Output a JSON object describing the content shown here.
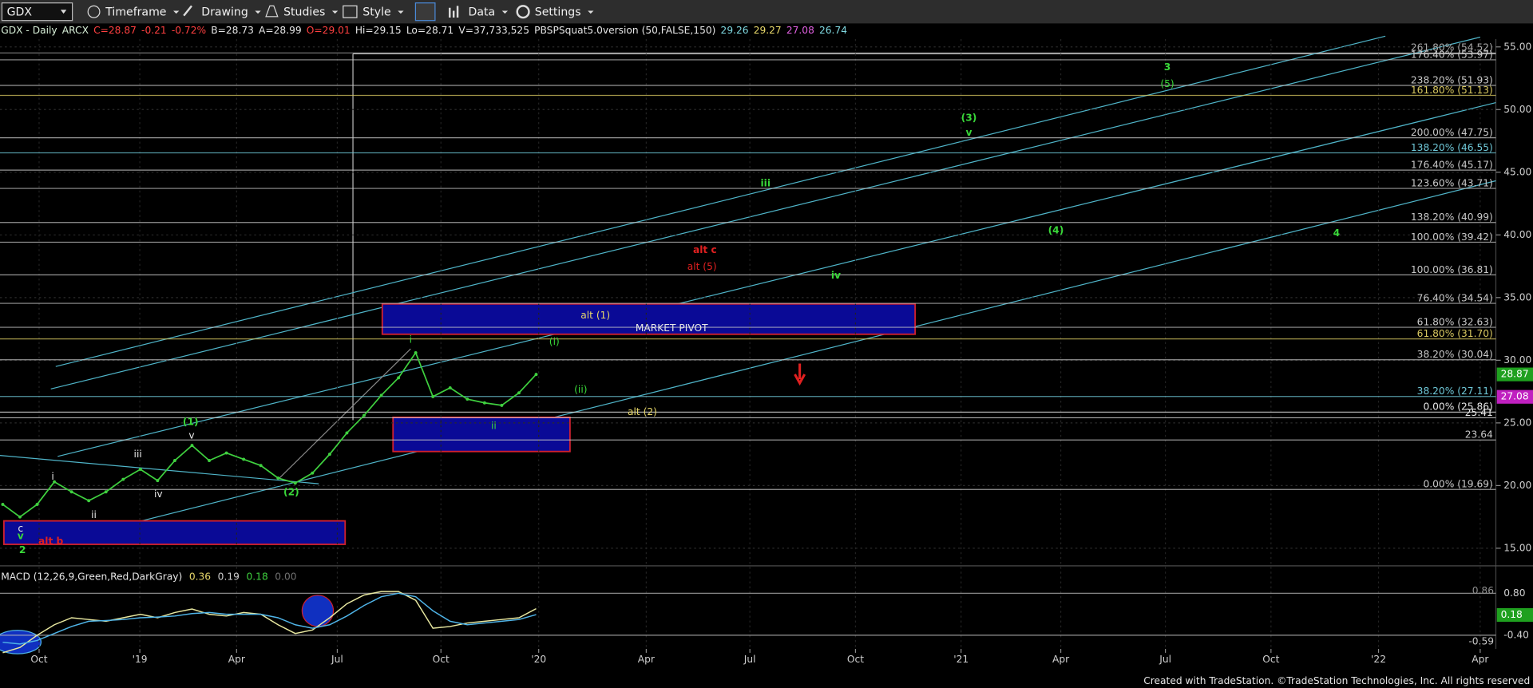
{
  "toolbar": {
    "symbol": "GDX",
    "menus": [
      "Timeframe",
      "Drawing",
      "Studies",
      "Style",
      "Data",
      "Settings"
    ]
  },
  "status_line": [
    {
      "text": "GDX - Daily",
      "color": "#d8f0d8"
    },
    {
      "text": "ARCX",
      "color": "#d8f0d8"
    },
    {
      "text": "C=28.87",
      "color": "#ff4040"
    },
    {
      "text": "-0.21",
      "color": "#ff4040"
    },
    {
      "text": "-0.72%",
      "color": "#ff4040"
    },
    {
      "text": "B=28.73",
      "color": "#e6e6e6"
    },
    {
      "text": "A=28.99",
      "color": "#e6e6e6"
    },
    {
      "text": "O=29.01",
      "color": "#ff4040"
    },
    {
      "text": "Hi=29.15",
      "color": "#e6e6e6"
    },
    {
      "text": "Lo=28.71",
      "color": "#e6e6e6"
    },
    {
      "text": "V=37,733,525",
      "color": "#e6e6e6"
    },
    {
      "text": "PBSPSquat5.0version (50,FALSE,150)",
      "color": "#e6e6e6"
    },
    {
      "text": "29.26",
      "color": "#7fd8e0"
    },
    {
      "text": "29.27",
      "color": "#e8d86a"
    },
    {
      "text": "27.08",
      "color": "#e060e0"
    },
    {
      "text": "26.74",
      "color": "#7fd8e0"
    }
  ],
  "price_chart": {
    "price_axis": [
      {
        "value": 55,
        "label": "55.00"
      },
      {
        "value": 50,
        "label": "50.00"
      },
      {
        "value": 45,
        "label": "45.00"
      },
      {
        "value": 40,
        "label": "40.00"
      },
      {
        "value": 35,
        "label": "35.00"
      },
      {
        "value": 30,
        "label": "30.00"
      },
      {
        "value": 25,
        "label": "25.00"
      },
      {
        "value": 20,
        "label": "20.00"
      },
      {
        "value": 15,
        "label": "15.00"
      }
    ],
    "time_axis": [
      "Oct",
      "'19",
      "Apr",
      "Jul",
      "Oct",
      "'20",
      "Apr",
      "Jul",
      "Oct",
      "'21",
      "Apr",
      "Jul",
      "Oct",
      "'22",
      "Apr"
    ],
    "closes": [
      18.5,
      17.5,
      18.5,
      20.3,
      19.5,
      18.8,
      19.5,
      20.5,
      21.3,
      20.4,
      22,
      23.2,
      22,
      22.6,
      22.1,
      21.6,
      20.6,
      20.2,
      21,
      22.5,
      24.2,
      25.6,
      27.2,
      28.6,
      30.6,
      27.1,
      27.8,
      26.9,
      26.6,
      26.4,
      27.4,
      28.87
    ],
    "price_color": "#3fd03f",
    "fib_levels": [
      {
        "label": "261.80% (54.52)",
        "price": 54.52,
        "color": "#a8a8a8"
      },
      {
        "label": "176.40% (53.97)",
        "price": 53.97,
        "color": "#c8c8c8"
      },
      {
        "label": "238.20% (51.93)",
        "price": 51.93,
        "color": "#c8c8c8"
      },
      {
        "label": "161.80% (51.13)",
        "price": 51.13,
        "color": "#d8c860"
      },
      {
        "label": "200.00% (47.75)",
        "price": 47.75,
        "color": "#c8c8c8"
      },
      {
        "label": "138.20% (46.55)",
        "price": 46.55,
        "color": "#6fc8d8"
      },
      {
        "label": "176.40% (45.17)",
        "price": 45.17,
        "color": "#c8c8c8"
      },
      {
        "label": "123.60% (43.71)",
        "price": 43.71,
        "color": "#c8c8c8"
      },
      {
        "label": "138.20% (40.99)",
        "price": 40.99,
        "color": "#c8c8c8"
      },
      {
        "label": "100.00% (39.42)",
        "price": 39.42,
        "color": "#c8c8c8"
      },
      {
        "label": "100.00% (36.81)",
        "price": 36.81,
        "color": "#c8c8c8"
      },
      {
        "label": "76.40% (34.54)",
        "price": 34.54,
        "color": "#c8c8c8"
      },
      {
        "label": "61.80% (32.63)",
        "price": 32.63,
        "color": "#c8c8c8"
      },
      {
        "label": "61.80% (31.70)",
        "price": 31.7,
        "color": "#d8c860"
      },
      {
        "label": "38.20% (30.04)",
        "price": 30.04,
        "color": "#c8c8c8"
      },
      {
        "label": "38.20% (27.11)",
        "price": 27.11,
        "color": "#6fc8d8"
      },
      {
        "label": "0.00% (25.86)",
        "price": 25.86,
        "color": "#e6e6e6"
      },
      {
        "label": "25.41",
        "price": 25.41,
        "color": "#e6e6e6"
      },
      {
        "label": "23.64",
        "price": 23.64,
        "color": "#c8c8c8"
      },
      {
        "label": "0.00% (19.69)",
        "price": 19.69,
        "color": "#c8c8c8"
      }
    ],
    "markers": [
      {
        "label": "28.87",
        "price": 28.87,
        "color": "#1fa01f"
      },
      {
        "label": "27.08",
        "price": 27.08,
        "color": "#c020c0"
      }
    ],
    "wave_labels": [
      {
        "text": "3",
        "color": "#39d839"
      },
      {
        "text": "(5)",
        "color": "#39d839"
      },
      {
        "text": "(3)",
        "color": "#39d839"
      },
      {
        "text": "v",
        "color": "#39d839"
      },
      {
        "text": "iii",
        "color": "#39d839"
      },
      {
        "text": "(4)",
        "color": "#39d839"
      },
      {
        "text": "4",
        "color": "#39d839"
      },
      {
        "text": "alt c",
        "color": "#e02020"
      },
      {
        "text": "alt (5)",
        "color": "#e02020"
      },
      {
        "text": "iv",
        "color": "#39d839"
      },
      {
        "text": "alt (1)",
        "color": "#e8d86a"
      },
      {
        "text": "MARKET PIVOT",
        "color": "#e6e6e6"
      },
      {
        "text": "(i)",
        "color": "#39d839"
      },
      {
        "text": "i",
        "color": "#39d839"
      },
      {
        "text": "(ii)",
        "color": "#39d839"
      },
      {
        "text": "ii",
        "color": "#39d839"
      },
      {
        "text": "alt (2)",
        "color": "#e8d86a"
      },
      {
        "text": "(1)",
        "color": "#39d839"
      },
      {
        "text": "v",
        "color": "#e6e6e6"
      },
      {
        "text": "iii",
        "color": "#e6e6e6"
      },
      {
        "text": "i",
        "color": "#e6e6e6"
      },
      {
        "text": "iv",
        "color": "#e6e6e6"
      },
      {
        "text": "(2)",
        "color": "#39d839"
      },
      {
        "text": "ii",
        "color": "#e6e6e6"
      },
      {
        "text": "c",
        "color": "#e6e6e6"
      },
      {
        "text": "v",
        "color": "#39d839"
      },
      {
        "text": "2",
        "color": "#39d839"
      },
      {
        "text": "alt b",
        "color": "#e02020"
      }
    ]
  },
  "macd": {
    "title": "MACD (12,26,9,Green,Red,DarkGray)",
    "readouts": [
      {
        "text": "0.36",
        "color": "#e8d86a"
      },
      {
        "text": "0.19",
        "color": "#d0d0d0"
      },
      {
        "text": "0.18",
        "color": "#3fd03f"
      },
      {
        "text": "0.00",
        "color": "#707070"
      }
    ],
    "axis": [
      {
        "value": 0.8,
        "label": "0.80"
      },
      {
        "value": -0.4,
        "label": "-0.40"
      }
    ],
    "macd_color": "#e8e8a0",
    "signal_color": "#4fb4e8",
    "macd": [
      -0.9,
      -0.75,
      -0.4,
      -0.1,
      0.1,
      0.05,
      0,
      0.1,
      0.2,
      0.1,
      0.25,
      0.35,
      0.2,
      0.15,
      0.25,
      0.2,
      -0.1,
      -0.35,
      -0.25,
      0.1,
      0.5,
      0.75,
      0.85,
      0.85,
      0.6,
      -0.2,
      -0.15,
      -0.05,
      0,
      0.05,
      0.1,
      0.36
    ],
    "signal": [
      -0.6,
      -0.65,
      -0.55,
      -0.35,
      -0.15,
      0,
      0.02,
      0.05,
      0.1,
      0.12,
      0.15,
      0.22,
      0.25,
      0.2,
      0.2,
      0.2,
      0.1,
      -0.1,
      -0.2,
      -0.1,
      0.15,
      0.45,
      0.7,
      0.8,
      0.7,
      0.3,
      0,
      -0.1,
      -0.05,
      0,
      0.05,
      0.19
    ],
    "markers": [
      {
        "label": "0.86",
        "value": 0.86,
        "color": "#909090",
        "boxed": false
      },
      {
        "label": "0.18",
        "value": 0.18,
        "color": "#1fa01f",
        "boxed": true
      },
      {
        "label": "-0.59",
        "value": -0.59,
        "color": "#c8c8c8",
        "boxed": false
      }
    ]
  },
  "footer": "Created with TradeStation. ©TradeStation Technologies, Inc. All rights reserved"
}
